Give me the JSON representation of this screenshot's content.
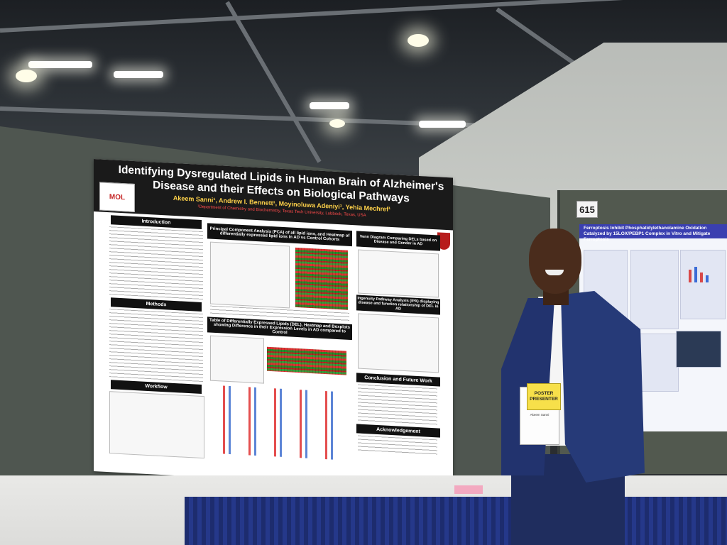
{
  "poster": {
    "title": "Identifying Dysregulated Lipids in Human Brain of Alzheimer's Disease and their Effects on Biological Pathways",
    "authors": "Akeem Sanni¹, Andrew I. Bennett¹, Moyinoluwa Adeniyi¹, Yehia Mechref¹",
    "affiliation": "¹Department of Chemistry and Biochemistry, Texas Tech University, Lubbock, Texas, USA",
    "logo_text": "MOL",
    "sections": {
      "introduction": "Introduction",
      "methods": "Methods",
      "workflow": "Workflow",
      "pca": "Principal Component Analysis (PCA) of all lipid ions, and Heatmap of differentially expressed lipid ions in AD vs Control Cohorts",
      "del_table": "Table of Differentially Expressed Lipids (DEL), Heatmap and Boxplots showing Difference in their Expression Levels in AD compared to Control",
      "venn": "Venn Diagram Comparing DELs based on Disease and Gender in AD",
      "ipa": "Ingenuity Pathway Analysis (IPA) displaying disease and function relationship of DEL in AD",
      "conclusion": "Conclusion and Future Work",
      "acknowledgement": "Acknowledgement"
    }
  },
  "neighbor_poster": {
    "title": "Ferroptosis Inhibit Phosphatidylethanolamine Oxidation Catalyzed by 15LOX/PEBP1 Complex in Vitro and Mitigate Ferroptosis"
  },
  "board_number": "615",
  "badge": {
    "tag": "POSTER PRESENTER",
    "name": "Akeem Sanni"
  },
  "colors": {
    "poster_header": "#1a1a1a",
    "title_text": "#ffffff",
    "authors_text": "#ffd24a",
    "affiliation_text": "#ff4b4b",
    "suit": "#263a78",
    "table_skirt": "#1d2c6e",
    "badge_tag": "#f7e04a"
  }
}
